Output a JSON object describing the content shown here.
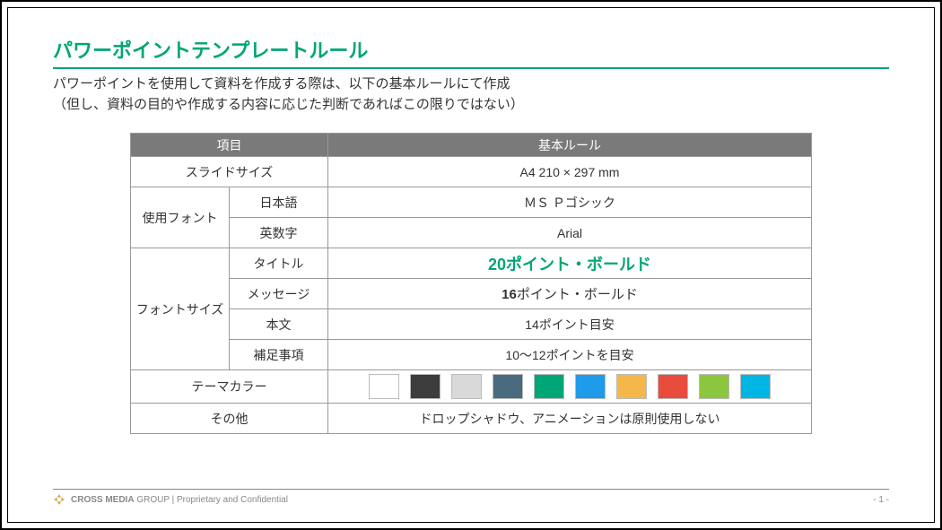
{
  "title": "パワーポイントテンプレートルール",
  "subtitle_line1": "パワーポイントを使用して資料を作成する際は、以下の基本ルールにて作成",
  "subtitle_line2": "（但し、資料の目的や作成する内容に応じた判断であればこの限りではない）",
  "accent_color": "#00a676",
  "table": {
    "header_left": "項目",
    "header_right": "基本ルール",
    "header_bg": "#7a7a7a",
    "border_color": "#999999",
    "rows": {
      "slide_size": {
        "label": "スライドサイズ",
        "value": "A4  210 × 297 mm"
      },
      "font": {
        "label": "使用フォント",
        "jp_label": "日本語",
        "jp_value": "ＭＳ Ｐゴシック",
        "an_label": "英数字",
        "an_value": "Arial"
      },
      "font_size": {
        "label": "フォントサイズ",
        "title_label": "タイトル",
        "title_value": "20ポイント・ボールド",
        "msg_label": "メッセージ",
        "msg_value_bold": "16",
        "msg_value_rest": "ポイント・ボールド",
        "body_label": "本文",
        "body_value": "14ポイント目安",
        "note_label": "補足事項",
        "note_value": "10～12ポイントを目安"
      },
      "theme": {
        "label": "テーマカラー"
      },
      "other": {
        "label": "その他",
        "value": "ドロップシャドウ、アニメーションは原則使用しない"
      }
    }
  },
  "theme_colors": [
    "#ffffff",
    "#3c3c3c",
    "#d9d9d9",
    "#4a6a80",
    "#00a676",
    "#1e9be9",
    "#f4b84a",
    "#e84c3d",
    "#8cc63f",
    "#00b5e2"
  ],
  "footer": {
    "brand_strong": "CROSS MEDIA",
    "brand_light": " GROUP",
    "sep": "  |  ",
    "note": "Proprietary and Confidential",
    "page": "- 1 -",
    "logo_color": "#d4a843"
  }
}
